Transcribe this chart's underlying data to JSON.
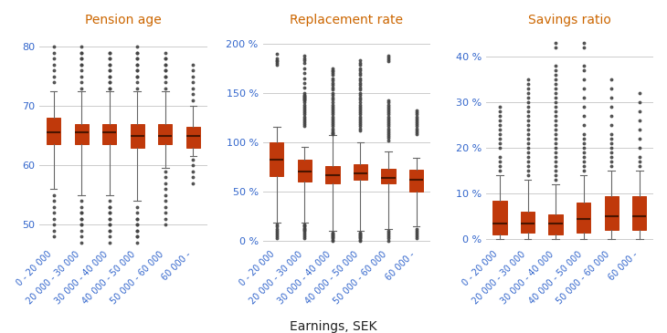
{
  "categories": [
    "0 - 20 000",
    "20 000 - 30 000",
    "30 000 - 40 000",
    "40 000 - 50 000",
    "50 000 - 60 000",
    "60 000 -"
  ],
  "xlabel": "Earnings, SEK",
  "subplot_titles": [
    "Pension age",
    "Replacement rate",
    "Savings ratio"
  ],
  "box_color": "#C0390B",
  "median_color": "#4A1500",
  "whisker_color": "#666666",
  "flier_color": "#444444",
  "grid_color": "#CCCCCC",
  "title_color": "#CC6600",
  "tick_color": "#3366CC",
  "background_color": "#FFFFFF",
  "pension_age": {
    "ylim": [
      46,
      83
    ],
    "yticks": [
      50,
      60,
      70,
      80
    ],
    "yticklabels": [
      "50",
      "60",
      "70",
      "80"
    ],
    "boxes": [
      {
        "q1": 63.5,
        "median": 65.5,
        "q3": 68.0,
        "whislo": 56.0,
        "whishi": 72.5
      },
      {
        "q1": 63.5,
        "median": 65.5,
        "q3": 67.0,
        "whislo": 55.0,
        "whishi": 72.5
      },
      {
        "q1": 63.5,
        "median": 65.5,
        "q3": 67.0,
        "whislo": 55.0,
        "whishi": 72.5
      },
      {
        "q1": 63.0,
        "median": 65.0,
        "q3": 67.0,
        "whislo": 54.0,
        "whishi": 72.5
      },
      {
        "q1": 63.5,
        "median": 65.0,
        "q3": 67.0,
        "whislo": 59.5,
        "whishi": 72.5
      },
      {
        "q1": 63.0,
        "median": 65.0,
        "q3": 66.5,
        "whislo": 61.5,
        "whishi": 70.0
      }
    ],
    "fliers_above": [
      [
        74,
        75,
        76,
        77,
        78,
        79,
        80
      ],
      [
        73,
        74,
        75,
        76,
        77,
        78,
        79,
        80,
        79,
        78,
        77
      ],
      [
        73,
        74,
        75,
        76,
        77,
        78,
        79,
        79,
        78,
        77,
        76,
        75,
        74,
        73
      ],
      [
        73,
        74,
        75,
        76,
        77,
        78,
        79,
        80,
        79,
        78,
        77,
        76,
        75
      ],
      [
        73,
        74,
        75,
        76,
        77,
        78,
        79,
        78,
        77,
        76,
        75
      ],
      [
        71,
        72,
        73,
        74,
        75,
        76,
        77
      ]
    ],
    "fliers_below": [
      [
        55,
        54,
        53,
        52,
        51,
        50,
        49,
        48
      ],
      [
        54,
        53,
        52,
        51,
        50,
        49,
        48,
        47,
        52,
        51,
        50
      ],
      [
        54,
        53,
        52,
        51,
        50,
        49,
        48,
        47,
        53,
        52,
        51,
        50,
        49
      ],
      [
        53,
        52,
        51,
        50,
        49,
        48,
        47,
        51,
        50,
        49,
        48
      ],
      [
        59,
        58,
        57,
        56,
        55,
        54,
        53,
        52,
        51,
        50
      ],
      [
        61,
        60,
        59,
        58,
        57
      ]
    ]
  },
  "replacement_rate": {
    "ylim": [
      -8,
      215
    ],
    "yticks": [
      0,
      50,
      100,
      150,
      200
    ],
    "yticklabels": [
      "0 %",
      "50 %",
      "100 %",
      "150 %",
      "200 %"
    ],
    "boxes": [
      {
        "q1": 65,
        "median": 82,
        "q3": 100,
        "whislo": 18,
        "whishi": 115
      },
      {
        "q1": 60,
        "median": 70,
        "q3": 82,
        "whislo": 18,
        "whishi": 95
      },
      {
        "q1": 58,
        "median": 66,
        "q3": 76,
        "whislo": 10,
        "whishi": 107
      },
      {
        "q1": 62,
        "median": 68,
        "q3": 77,
        "whislo": 10,
        "whishi": 100
      },
      {
        "q1": 58,
        "median": 64,
        "q3": 73,
        "whislo": 12,
        "whishi": 90
      },
      {
        "q1": 50,
        "median": 62,
        "q3": 72,
        "whislo": 14,
        "whishi": 84
      }
    ],
    "fliers_above": [
      [
        190,
        185,
        183,
        182,
        180,
        178
      ],
      [
        188,
        185,
        183,
        180,
        175,
        170,
        165,
        160,
        155,
        150,
        148,
        147,
        146,
        145,
        144,
        143,
        142,
        140,
        138,
        136,
        134,
        132,
        130,
        128,
        126,
        124,
        122,
        120,
        118,
        116
      ],
      [
        175,
        173,
        172,
        170,
        168,
        165,
        163,
        160,
        158,
        155,
        153,
        150,
        148,
        145,
        143,
        140,
        138,
        136,
        134,
        132,
        130,
        128,
        126,
        124,
        122,
        120,
        118,
        116,
        114,
        112,
        110,
        109,
        108
      ],
      [
        183,
        180,
        178,
        175,
        173,
        170,
        168,
        165,
        163,
        160,
        158,
        155,
        153,
        150,
        148,
        145,
        143,
        140,
        138,
        136,
        134,
        132,
        130,
        128,
        126,
        124,
        122,
        120,
        118,
        116,
        114,
        112
      ],
      [
        188,
        186,
        184,
        182,
        142,
        140,
        138,
        136,
        134,
        132,
        130,
        128,
        126,
        124,
        122,
        120,
        118,
        116,
        114,
        112,
        110,
        108,
        106,
        104,
        102
      ],
      [
        132,
        130,
        128,
        126,
        124,
        122,
        120,
        118,
        116,
        114,
        112,
        110,
        108
      ]
    ],
    "fliers_below": [
      [
        16,
        14,
        12,
        10,
        8,
        6,
        4,
        2
      ],
      [
        16,
        14,
        12,
        10,
        8,
        6,
        4,
        2,
        15,
        13,
        11
      ],
      [
        8,
        6,
        4,
        2,
        0,
        7,
        5,
        3,
        1
      ],
      [
        8,
        6,
        4,
        2,
        0,
        7,
        5,
        3,
        1
      ],
      [
        10,
        8,
        6,
        4,
        2,
        0
      ],
      [
        12,
        10,
        8,
        6,
        4,
        2
      ]
    ]
  },
  "savings_ratio": {
    "ylim": [
      -2,
      46
    ],
    "yticks": [
      0,
      10,
      20,
      30,
      40
    ],
    "yticklabels": [
      "0 %",
      "10 %",
      "20 %",
      "30 %",
      "40 %"
    ],
    "boxes": [
      {
        "q1": 1.0,
        "median": 3.5,
        "q3": 8.5,
        "whislo": 0.0,
        "whishi": 14.0
      },
      {
        "q1": 1.5,
        "median": 3.5,
        "q3": 6.0,
        "whislo": 0.0,
        "whishi": 13.0
      },
      {
        "q1": 1.0,
        "median": 3.5,
        "q3": 5.5,
        "whislo": 0.0,
        "whishi": 12.0
      },
      {
        "q1": 1.5,
        "median": 4.5,
        "q3": 8.0,
        "whislo": 0.0,
        "whishi": 14.0
      },
      {
        "q1": 2.0,
        "median": 5.0,
        "q3": 9.5,
        "whislo": 0.0,
        "whishi": 15.0
      },
      {
        "q1": 2.0,
        "median": 5.0,
        "q3": 9.5,
        "whislo": 0.0,
        "whishi": 15.0
      }
    ],
    "fliers_above": [
      [
        29,
        28,
        27,
        26,
        25,
        24,
        23,
        22,
        21,
        20,
        18,
        17,
        16,
        15
      ],
      [
        35,
        34,
        33,
        32,
        31,
        30,
        29,
        28,
        27,
        26,
        25,
        24,
        23,
        22,
        21,
        20,
        19,
        18,
        17,
        16,
        15,
        14
      ],
      [
        43,
        42,
        38,
        37,
        36,
        35,
        34,
        33,
        32,
        31,
        30,
        29,
        28,
        27,
        26,
        25,
        24,
        23,
        22,
        21,
        20,
        19,
        18,
        17,
        16,
        15,
        14,
        13
      ],
      [
        43,
        42,
        38,
        37,
        35,
        33,
        31,
        29,
        27,
        25,
        23,
        22,
        21,
        20,
        19,
        18,
        17,
        16,
        15
      ],
      [
        35,
        33,
        31,
        29,
        27,
        25,
        23,
        22,
        21,
        20,
        19,
        18,
        17,
        16
      ],
      [
        32,
        30,
        28,
        26,
        24,
        22,
        20,
        18,
        17,
        16
      ]
    ],
    "fliers_below": []
  }
}
